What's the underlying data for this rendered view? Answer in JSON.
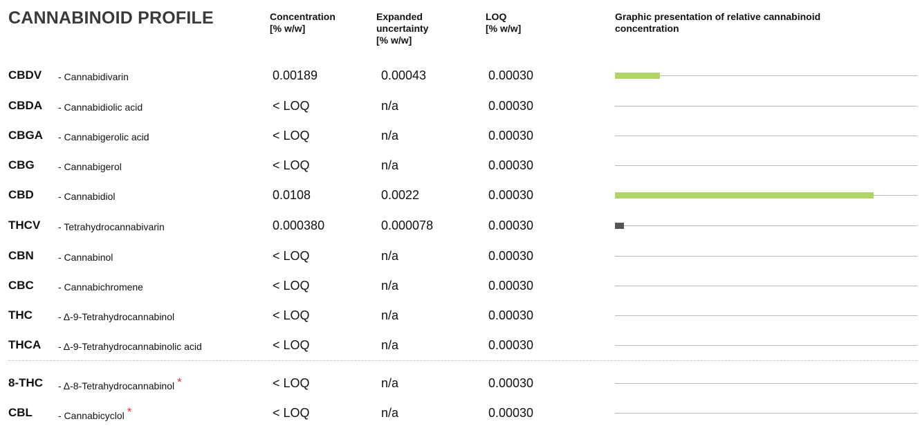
{
  "title": "CANNABINOID PROFILE",
  "headers": {
    "concentration": [
      "Concentration",
      "[% w/w]"
    ],
    "uncertainty": [
      "Expanded",
      "uncertainty",
      "[% w/w]"
    ],
    "loq": [
      "LOQ",
      "[% w/w]"
    ],
    "graphic": [
      "Graphic presentation of relative cannabinoid",
      "concentration"
    ]
  },
  "colors": {
    "bar_accent": "#b0d466",
    "bar_dark": "#555555",
    "asterisk": "#e53030"
  },
  "rows": [
    {
      "abbr": "CBDV",
      "name": "- Cannabidivarin",
      "concentration": "0.00189",
      "uncertainty": "0.00043",
      "loq": "0.00030",
      "starred": false,
      "bar_fraction": 0.149,
      "bar_color": "accent"
    },
    {
      "abbr": "CBDA",
      "name": "- Cannabidiolic acid",
      "concentration": "< LOQ",
      "uncertainty": "n/a",
      "loq": "0.00030",
      "starred": false,
      "bar_fraction": 0,
      "bar_color": "accent"
    },
    {
      "abbr": "CBGA",
      "name": "- Cannabigerolic acid",
      "concentration": "< LOQ",
      "uncertainty": "n/a",
      "loq": "0.00030",
      "starred": false,
      "bar_fraction": 0,
      "bar_color": "accent"
    },
    {
      "abbr": "CBG",
      "name": "- Cannabigerol",
      "concentration": "< LOQ",
      "uncertainty": "n/a",
      "loq": "0.00030",
      "starred": false,
      "bar_fraction": 0,
      "bar_color": "accent"
    },
    {
      "abbr": "CBD",
      "name": "- Cannabidiol",
      "concentration": "0.0108",
      "uncertainty": "0.0022",
      "loq": "0.00030",
      "starred": false,
      "bar_fraction": 0.856,
      "bar_color": "accent"
    },
    {
      "abbr": "THCV",
      "name": "- Tetrahydrocannabivarin",
      "concentration": "0.000380",
      "uncertainty": "0.000078",
      "loq": "0.00030",
      "starred": false,
      "bar_fraction": 0.03,
      "bar_color": "dark"
    },
    {
      "abbr": "CBN",
      "name": "- Cannabinol",
      "concentration": "< LOQ",
      "uncertainty": "n/a",
      "loq": "0.00030",
      "starred": false,
      "bar_fraction": 0,
      "bar_color": "accent"
    },
    {
      "abbr": "CBC",
      "name": "- Cannabichromene",
      "concentration": "< LOQ",
      "uncertainty": "n/a",
      "loq": "0.00030",
      "starred": false,
      "bar_fraction": 0,
      "bar_color": "accent"
    },
    {
      "abbr": "THC",
      "name": "- Δ-9-Tetrahydrocannabinol",
      "concentration": "< LOQ",
      "uncertainty": "n/a",
      "loq": "0.00030",
      "starred": false,
      "bar_fraction": 0,
      "bar_color": "accent"
    },
    {
      "abbr": "THCA",
      "name": "- Δ-9-Tetrahydrocannabinolic acid",
      "concentration": "< LOQ",
      "uncertainty": "n/a",
      "loq": "0.00030",
      "starred": false,
      "bar_fraction": 0,
      "bar_color": "accent"
    },
    {
      "abbr": "8-THC",
      "name": "- Δ-8-Tetrahydrocannabinol",
      "concentration": "< LOQ",
      "uncertainty": "n/a",
      "loq": "0.00030",
      "starred": true,
      "bar_fraction": 0,
      "bar_color": "accent"
    },
    {
      "abbr": "CBL",
      "name": "- Cannabicyclol",
      "concentration": "< LOQ",
      "uncertainty": "n/a",
      "loq": "0.00030",
      "starred": true,
      "bar_fraction": 0,
      "bar_color": "accent"
    }
  ],
  "asterisk_symbol": "*"
}
